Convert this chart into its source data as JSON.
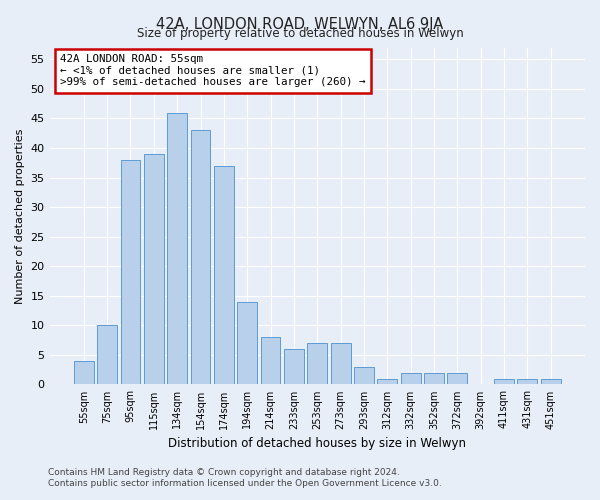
{
  "title": "42A, LONDON ROAD, WELWYN, AL6 9JA",
  "subtitle": "Size of property relative to detached houses in Welwyn",
  "xlabel": "Distribution of detached houses by size in Welwyn",
  "ylabel": "Number of detached properties",
  "bar_labels": [
    "55sqm",
    "75sqm",
    "95sqm",
    "115sqm",
    "134sqm",
    "154sqm",
    "174sqm",
    "194sqm",
    "214sqm",
    "233sqm",
    "253sqm",
    "273sqm",
    "293sqm",
    "312sqm",
    "332sqm",
    "352sqm",
    "372sqm",
    "392sqm",
    "411sqm",
    "431sqm",
    "451sqm"
  ],
  "bar_values": [
    4,
    10,
    38,
    39,
    46,
    43,
    37,
    14,
    8,
    6,
    7,
    7,
    3,
    1,
    2,
    2,
    2,
    0,
    1,
    1,
    1
  ],
  "bar_color": "#b8d0ea",
  "bar_edge_color": "#5b9bd5",
  "ylim": [
    0,
    57
  ],
  "yticks": [
    0,
    5,
    10,
    15,
    20,
    25,
    30,
    35,
    40,
    45,
    50,
    55
  ],
  "annotation_line1": "42A LONDON ROAD: 55sqm",
  "annotation_line2": "← <1% of detached houses are smaller (1)",
  "annotation_line3": ">99% of semi-detached houses are larger (260) →",
  "annotation_box_color": "#ffffff",
  "annotation_box_edge_color": "#cc0000",
  "footer_line1": "Contains HM Land Registry data © Crown copyright and database right 2024.",
  "footer_line2": "Contains public sector information licensed under the Open Government Licence v3.0.",
  "bg_color": "#e8eef8",
  "plot_bg_color": "#e8eef8"
}
